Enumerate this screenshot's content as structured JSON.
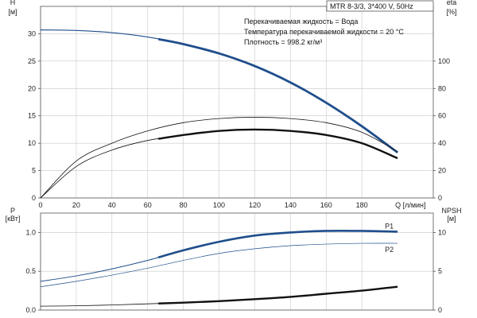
{
  "chart_data": [
    {
      "type": "line",
      "pump_label": "MTR 8-3/3, 3*400 V, 50Hz",
      "info_lines": [
        "Перекачиваемая жидкость = Вода",
        "Температура перекачиваемой жидкости = 20 °C",
        "Плотность = 998.2 кг/м³"
      ],
      "xlabel": "Q [л/мин]",
      "xlim": [
        0,
        220
      ],
      "x_ticks": [
        0,
        20,
        40,
        60,
        80,
        100,
        120,
        140,
        160,
        180
      ],
      "x_tick_labels": [
        "0",
        "20",
        "40",
        "60",
        "80",
        "100",
        "120",
        "140",
        "160",
        "180"
      ],
      "ylabel_left": [
        "H",
        "[м]"
      ],
      "ylim_left": [
        0,
        35
      ],
      "y_ticks_left": [
        0,
        5,
        10,
        15,
        20,
        25,
        30
      ],
      "ylabel_right": [
        "eta",
        "[%]"
      ],
      "ylim_right": [
        0,
        140
      ],
      "y_ticks_right": [
        0,
        20,
        40,
        60,
        80,
        100
      ],
      "grid": true,
      "series": [
        {
          "axis": "left",
          "color": "#1f4e8c",
          "width": 1.2,
          "x": [
            0,
            20,
            40,
            60,
            80,
            100,
            120,
            140,
            160,
            180,
            200
          ],
          "y": [
            30.7,
            30.6,
            30.2,
            29.4,
            28.1,
            26.4,
            24.1,
            21.1,
            17.4,
            13.1,
            8.3
          ],
          "bold_from": 66
        },
        {
          "axis": "right",
          "color": "#111111",
          "width": 0.8,
          "x": [
            0,
            20,
            40,
            60,
            80,
            100,
            120,
            140,
            160,
            180,
            200
          ],
          "y": [
            0,
            27,
            40,
            49,
            55,
            58,
            59,
            58,
            55,
            48,
            34
          ]
        },
        {
          "axis": "right",
          "color": "#111111",
          "width": 0.8,
          "x": [
            0,
            20,
            40,
            60,
            80,
            100,
            120,
            140,
            160,
            180,
            200
          ],
          "y": [
            0,
            23,
            35,
            42,
            46,
            49,
            50,
            49,
            46,
            40,
            29
          ],
          "bold_from": 66
        }
      ]
    },
    {
      "type": "line",
      "xlim": [
        0,
        220
      ],
      "x_ticks": [
        0,
        20,
        40,
        60,
        80,
        100,
        120,
        140,
        160,
        180
      ],
      "ylabel_left": [
        "P",
        "[кВт]"
      ],
      "ylim_left": [
        0,
        1.25
      ],
      "y_ticks_left": [
        0,
        0.5,
        1.0
      ],
      "y_tick_labels_left": [
        "0.0",
        "0.5",
        "1.0"
      ],
      "ylabel_right": [
        "NPSH",
        "[м]"
      ],
      "ylim_right": [
        0,
        12.5
      ],
      "y_ticks_right": [
        0,
        5,
        10
      ],
      "grid": true,
      "series": [
        {
          "name": "P1",
          "axis": "left",
          "color": "#1f4e8c",
          "width": 1.0,
          "x": [
            0,
            20,
            40,
            60,
            80,
            100,
            120,
            140,
            160,
            180,
            200
          ],
          "y": [
            0.37,
            0.44,
            0.53,
            0.64,
            0.77,
            0.88,
            0.96,
            1.0,
            1.02,
            1.02,
            1.01
          ],
          "bold_from": 66
        },
        {
          "name": "P2",
          "axis": "left",
          "color": "#1f4e8c",
          "width": 0.7,
          "x": [
            0,
            20,
            40,
            60,
            80,
            100,
            120,
            140,
            160,
            180,
            200
          ],
          "y": [
            0.3,
            0.37,
            0.45,
            0.54,
            0.64,
            0.73,
            0.79,
            0.83,
            0.85,
            0.86,
            0.86
          ]
        },
        {
          "axis": "right",
          "color": "#111111",
          "width": 0.8,
          "x": [
            0,
            20,
            40,
            60,
            80,
            100,
            120,
            140,
            160,
            180,
            200
          ],
          "y": [
            0.5,
            0.55,
            0.65,
            0.8,
            0.95,
            1.15,
            1.4,
            1.7,
            2.1,
            2.5,
            3.0
          ],
          "bold_from": 66
        }
      ]
    }
  ]
}
